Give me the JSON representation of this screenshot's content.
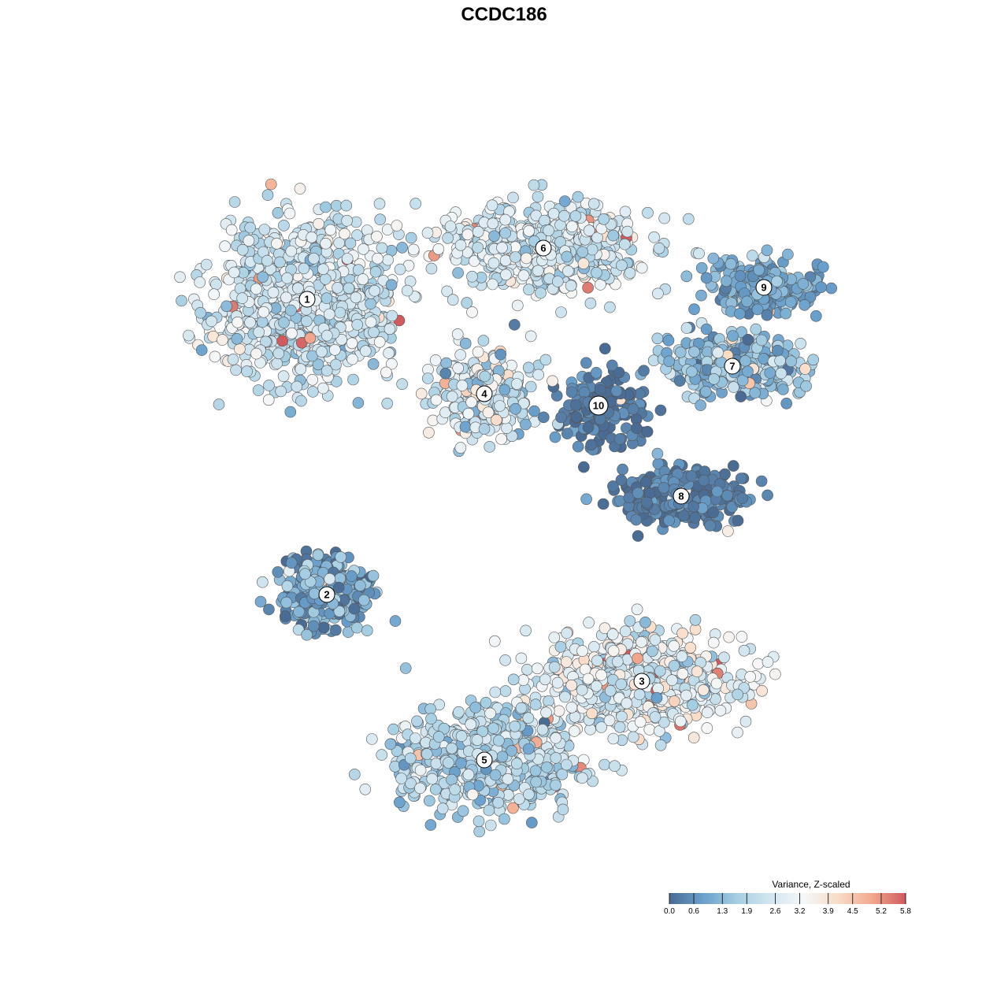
{
  "chart_data": {
    "type": "scatter",
    "title": "CCDC186",
    "legend": {
      "title": "Variance, Z-scaled",
      "placement": "bottom-right",
      "ticks": [
        "0.0",
        "0.6",
        "1.3",
        "1.9",
        "2.6",
        "3.2",
        "3.9",
        "4.5",
        "5.2",
        "5.8"
      ],
      "range": [
        0.0,
        5.8
      ],
      "colors": [
        "#4a6b93",
        "#6aa0cc",
        "#a6cee3",
        "#d3e6f0",
        "#f5f7f8",
        "#f9dcc8",
        "#f2a98e",
        "#d05a5e"
      ]
    },
    "grid": false,
    "axes_visible": false,
    "clusters": [
      {
        "label": "1",
        "cx": -5.0,
        "cy": 5.2,
        "sx": 2.1,
        "sy": 1.8,
        "mean": 2.4,
        "sd": 0.6,
        "n": 900
      },
      {
        "label": "6",
        "cx": 1.0,
        "cy": 6.5,
        "sx": 2.2,
        "sy": 1.0,
        "mean": 2.5,
        "sd": 0.6,
        "n": 650
      },
      {
        "label": "4",
        "cx": -0.5,
        "cy": 2.8,
        "sx": 1.1,
        "sy": 1.0,
        "mean": 2.6,
        "sd": 0.9,
        "n": 330
      },
      {
        "label": "10",
        "cx": 2.4,
        "cy": 2.5,
        "sx": 1.0,
        "sy": 0.9,
        "mean": 0.2,
        "sd": 0.3,
        "n": 160
      },
      {
        "label": "9",
        "cx": 6.6,
        "cy": 5.5,
        "sx": 1.2,
        "sy": 0.6,
        "mean": 1.0,
        "sd": 0.4,
        "n": 260
      },
      {
        "label": "7",
        "cx": 5.8,
        "cy": 3.5,
        "sx": 1.6,
        "sy": 0.7,
        "mean": 1.5,
        "sd": 0.6,
        "n": 350
      },
      {
        "label": "8",
        "cx": 4.5,
        "cy": 0.2,
        "sx": 1.4,
        "sy": 0.6,
        "mean": 0.3,
        "sd": 0.3,
        "n": 360
      },
      {
        "label": "2",
        "cx": -4.5,
        "cy": -2.3,
        "sx": 1.0,
        "sy": 0.8,
        "mean": 1.0,
        "sd": 0.7,
        "n": 330
      },
      {
        "label": "3",
        "cx": 3.5,
        "cy": -4.5,
        "sx": 2.2,
        "sy": 1.1,
        "mean": 2.8,
        "sd": 0.7,
        "n": 720
      },
      {
        "label": "5",
        "cx": -0.5,
        "cy": -6.5,
        "sx": 2.0,
        "sy": 1.1,
        "mean": 2.0,
        "sd": 0.6,
        "n": 720
      }
    ],
    "xlim": [
      -10,
      10
    ],
    "ylim": [
      -10,
      10
    ]
  }
}
